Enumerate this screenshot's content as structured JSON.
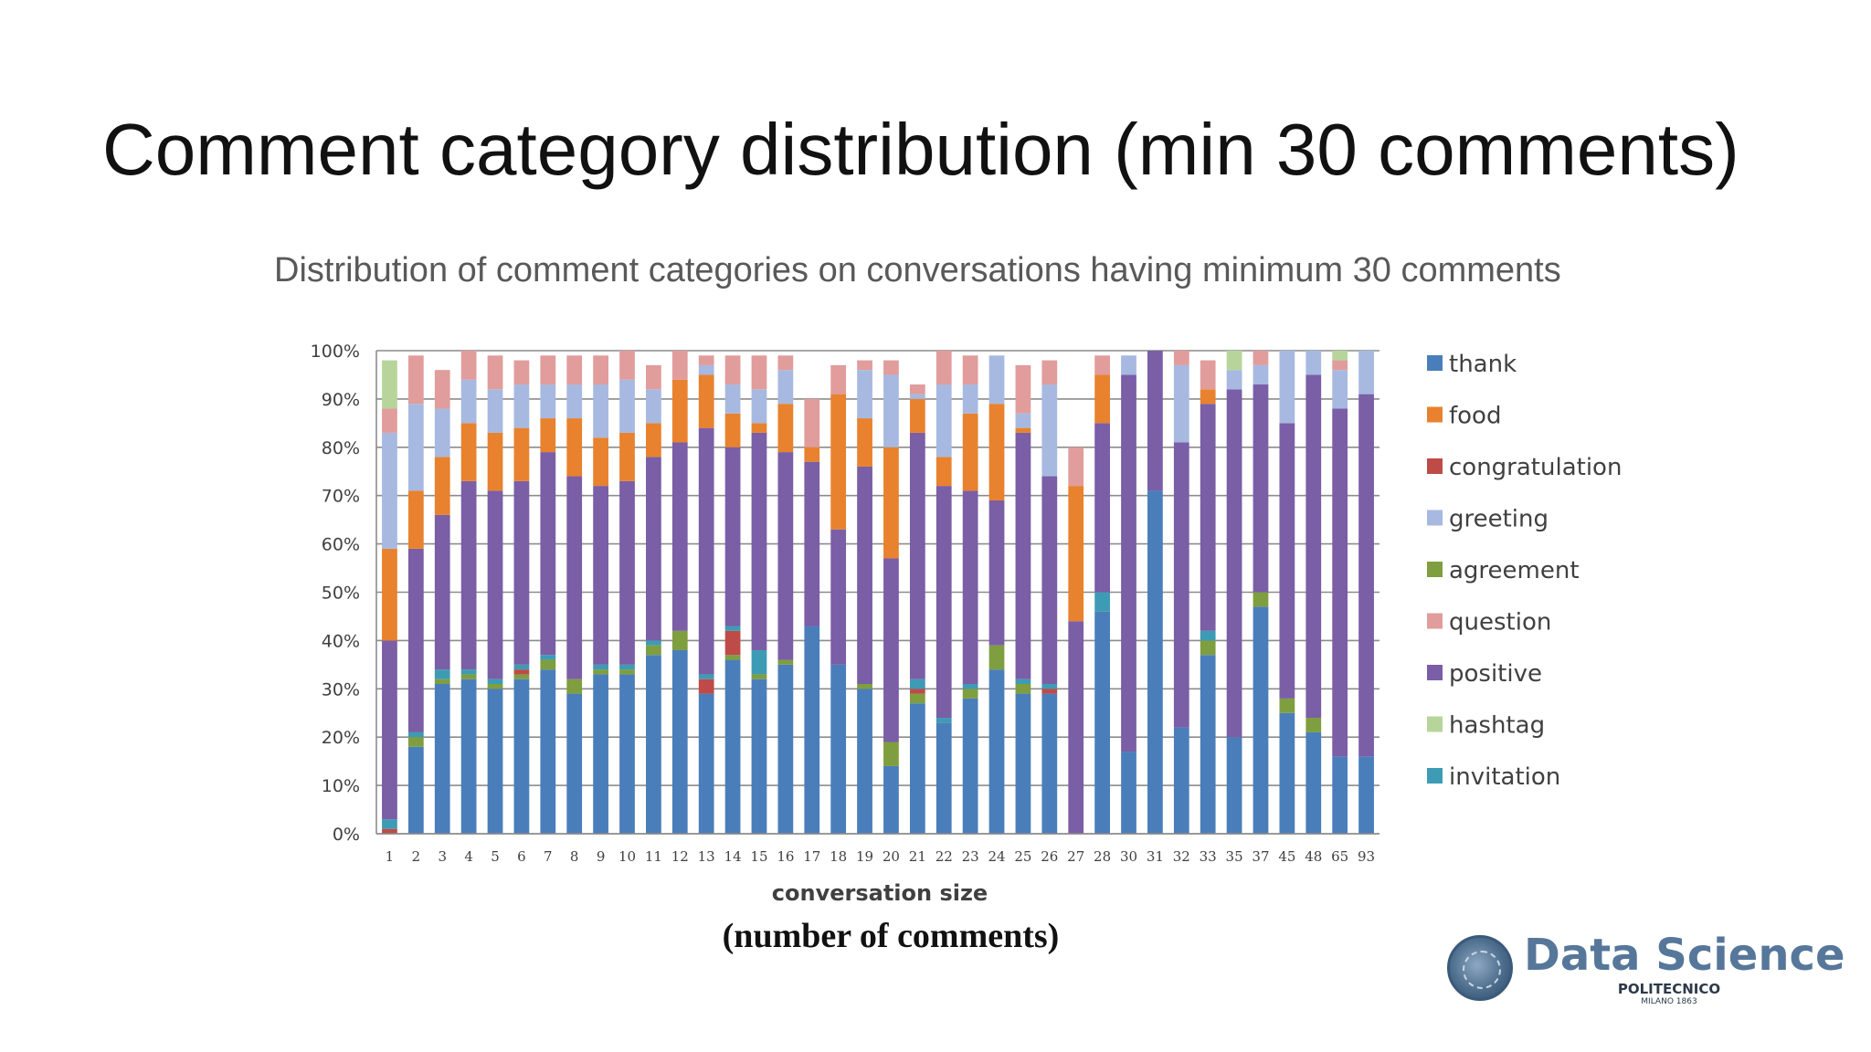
{
  "slide": {
    "title": "Comment category distribution (min 30 comments)",
    "xlabel_note": "(number of comments)"
  },
  "logo": {
    "name": "Data Science",
    "sub1": "POLITECNICO",
    "sub2": "MILANO 1863"
  },
  "chart_data": {
    "type": "bar",
    "stacked": true,
    "normalized": true,
    "title": "Distribution of comment categories on conversations having minimum 30 comments",
    "xlabel": "conversation size",
    "ylabel": "",
    "ylim": [
      0,
      100
    ],
    "y_ticks": [
      "0%",
      "10%",
      "20%",
      "30%",
      "40%",
      "50%",
      "60%",
      "70%",
      "80%",
      "90%",
      "100%"
    ],
    "grid": true,
    "legend_position": "right",
    "categories": [
      "1",
      "2",
      "3",
      "4",
      "5",
      "6",
      "7",
      "8",
      "9",
      "10",
      "11",
      "12",
      "13",
      "14",
      "15",
      "16",
      "17",
      "18",
      "19",
      "20",
      "21",
      "22",
      "23",
      "24",
      "25",
      "26",
      "27",
      "28",
      "30",
      "31",
      "32",
      "33",
      "35",
      "37",
      "45",
      "48",
      "65",
      "93"
    ],
    "series": [
      {
        "name": "thank",
        "color": "#4a7ebb",
        "values": [
          0,
          18,
          31,
          32,
          30,
          32,
          34,
          29,
          33,
          33,
          37,
          38,
          29,
          36,
          32,
          35,
          43,
          35,
          30,
          14,
          27,
          23,
          28,
          34,
          29,
          29,
          0,
          46,
          17,
          71,
          22,
          37,
          20,
          47,
          25,
          21,
          16,
          16
        ]
      },
      {
        "name": "food",
        "color": "#e8822e",
        "values": [
          19,
          12,
          12,
          12,
          12,
          11,
          7,
          12,
          10,
          10,
          7,
          13,
          11,
          7,
          2,
          10,
          3,
          28,
          10,
          23,
          7,
          6,
          16,
          20,
          1,
          0,
          28,
          10,
          0,
          0,
          0,
          3,
          0,
          0,
          0,
          0,
          0,
          0
        ]
      },
      {
        "name": "congratulation",
        "color": "#be4b48",
        "values": [
          1,
          0,
          0,
          0,
          0,
          1,
          0,
          0,
          0,
          0,
          0,
          0,
          3,
          5,
          0,
          0,
          0,
          0,
          0,
          0,
          1,
          0,
          0,
          0,
          0,
          1,
          0,
          0,
          0,
          0,
          0,
          0,
          0,
          0,
          0,
          0,
          0,
          0
        ]
      },
      {
        "name": "greeting",
        "color": "#a7b9e0",
        "values": [
          24,
          18,
          10,
          9,
          9,
          9,
          7,
          7,
          11,
          11,
          7,
          0,
          2,
          6,
          7,
          7,
          0,
          0,
          10,
          15,
          1,
          15,
          6,
          10,
          3,
          19,
          0,
          0,
          4,
          0,
          16,
          0,
          4,
          4,
          15,
          5,
          8,
          9
        ]
      },
      {
        "name": "agreement",
        "color": "#7f9e3f",
        "values": [
          0,
          2,
          1,
          1,
          1,
          1,
          2,
          3,
          1,
          1,
          2,
          4,
          0,
          1,
          1,
          1,
          0,
          0,
          1,
          5,
          2,
          0,
          2,
          5,
          2,
          0,
          0,
          0,
          0,
          0,
          0,
          3,
          0,
          3,
          3,
          3,
          0,
          0
        ]
      },
      {
        "name": "question",
        "color": "#e19c9c",
        "values": [
          5,
          10,
          8,
          6,
          7,
          5,
          6,
          6,
          6,
          6,
          5,
          6,
          2,
          6,
          7,
          3,
          10,
          6,
          2,
          3,
          2,
          7,
          6,
          0,
          10,
          5,
          8,
          4,
          0,
          0,
          3,
          6,
          0,
          3,
          0,
          0,
          2,
          0
        ]
      },
      {
        "name": "positive",
        "color": "#7a5ea6",
        "values": [
          37,
          38,
          32,
          39,
          39,
          38,
          42,
          42,
          37,
          38,
          38,
          39,
          51,
          37,
          45,
          43,
          34,
          28,
          45,
          38,
          51,
          48,
          40,
          30,
          51,
          43,
          44,
          35,
          78,
          29,
          59,
          47,
          72,
          43,
          57,
          71,
          72,
          75
        ]
      },
      {
        "name": "hashtag",
        "color": "#b7d59b",
        "values": [
          10,
          0,
          0,
          0,
          0,
          0,
          0,
          0,
          0,
          0,
          0,
          0,
          0,
          0,
          0,
          0,
          0,
          0,
          0,
          0,
          0,
          0,
          0,
          0,
          0,
          0,
          0,
          0,
          0,
          0,
          0,
          0,
          4,
          0,
          0,
          0,
          2,
          0
        ]
      },
      {
        "name": "invitation",
        "color": "#3e9bb4",
        "values": [
          2,
          1,
          2,
          1,
          1,
          1,
          1,
          0,
          1,
          1,
          1,
          0,
          1,
          1,
          5,
          0,
          0,
          0,
          0,
          0,
          2,
          1,
          1,
          0,
          1,
          1,
          0,
          4,
          0,
          0,
          0,
          2,
          0,
          0,
          0,
          0,
          0,
          0
        ]
      }
    ],
    "stack_order": [
      "thank",
      "agreement",
      "congratulation",
      "invitation",
      "positive",
      "food",
      "greeting",
      "question",
      "hashtag"
    ]
  }
}
